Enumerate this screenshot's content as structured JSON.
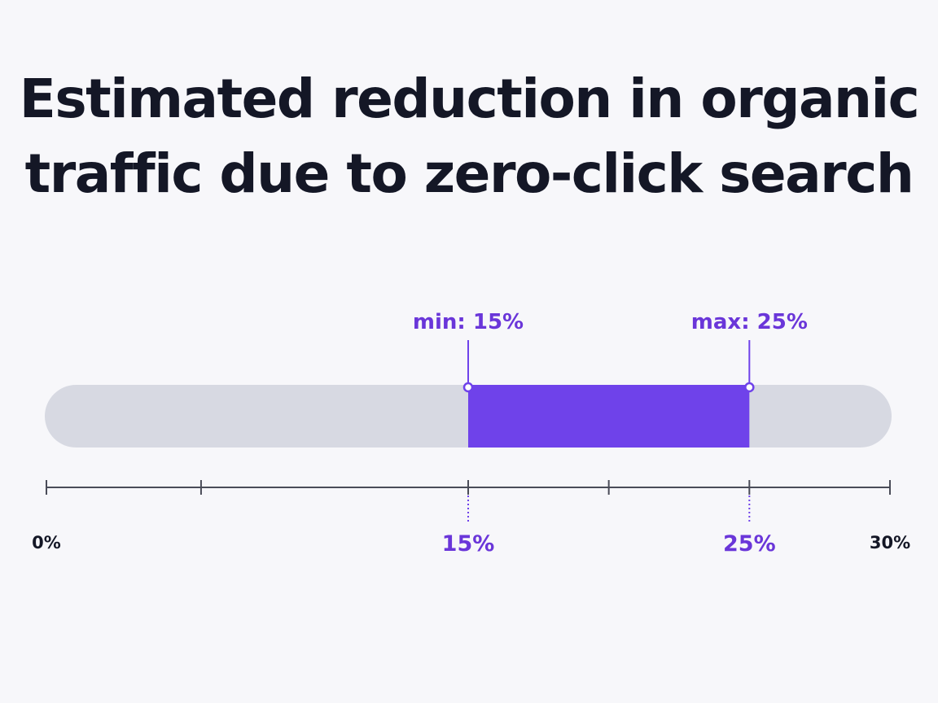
{
  "title_lines": [
    "Estimated reduction in organic",
    "traffic due to zero-click search"
  ],
  "chart_data": {
    "type": "range",
    "title": "Estimated reduction in organic traffic due to zero-click search",
    "axis": {
      "min": 0,
      "max": 30,
      "unit": "%"
    },
    "range": {
      "min": 15,
      "max": 25
    },
    "markers": [
      {
        "label": "min: 15%",
        "value": 15
      },
      {
        "label": "max: 25%",
        "value": 25
      }
    ],
    "minor_ticks": [
      0,
      5.5,
      15,
      20,
      25,
      30
    ],
    "tick_labels": [
      {
        "label": "0%",
        "value": 0,
        "highlight": false
      },
      {
        "label": "15%",
        "value": 15,
        "highlight": true
      },
      {
        "label": "25%",
        "value": 25,
        "highlight": true
      },
      {
        "label": "30%",
        "value": 30,
        "highlight": false
      }
    ]
  },
  "colors": {
    "accent": "#6f42ea",
    "accent_text": "#6a36d9",
    "track": "#d7d9e2",
    "axis": "#4a4c58",
    "text": "#141726"
  }
}
